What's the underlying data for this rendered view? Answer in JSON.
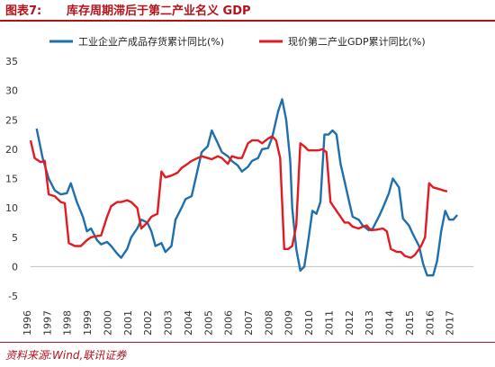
{
  "header": {
    "figure_label": "图表7:",
    "title": "库存周期滞后于第二产业名义 GDP"
  },
  "source": "资料来源:Wind,联讯证券",
  "colors": {
    "accent": "#b3121d",
    "series_blue": "#1f6fad",
    "series_red": "#e11b22"
  },
  "chart_data": {
    "type": "line",
    "title": "库存周期滞后于第二产业名义 GDP",
    "xlabel": "",
    "ylabel": "",
    "ylim": [
      -5,
      35
    ],
    "yticks": [
      -5,
      0,
      5,
      10,
      15,
      20,
      25,
      30,
      35
    ],
    "xlim": [
      1996,
      2018
    ],
    "xticks": [
      "1996",
      "1997",
      "1998",
      "1999",
      "2000",
      "2001",
      "2002",
      "2003",
      "2004",
      "2005",
      "2006",
      "2007",
      "2008",
      "2009",
      "2010",
      "2011",
      "2012",
      "2013",
      "2014",
      "2015",
      "2016",
      "2017"
    ],
    "grid": false,
    "legend_position": "top",
    "series": [
      {
        "name": "工业企业产成品存货累计同比(%)",
        "color": "#1f6fad",
        "points": [
          [
            1996.3,
            23.5
          ],
          [
            1996.6,
            18.5
          ],
          [
            1996.9,
            15.0
          ],
          [
            1997.2,
            13.0
          ],
          [
            1997.5,
            12.3
          ],
          [
            1997.8,
            12.5
          ],
          [
            1998.0,
            14.2
          ],
          [
            1998.3,
            11.0
          ],
          [
            1998.6,
            8.5
          ],
          [
            1998.8,
            6.0
          ],
          [
            1999.0,
            6.5
          ],
          [
            1999.3,
            4.5
          ],
          [
            1999.5,
            3.8
          ],
          [
            1999.8,
            4.2
          ],
          [
            2000.0,
            3.5
          ],
          [
            2000.3,
            2.2
          ],
          [
            2000.5,
            1.5
          ],
          [
            2000.8,
            3.0
          ],
          [
            2001.0,
            5.0
          ],
          [
            2001.3,
            6.5
          ],
          [
            2001.5,
            8.0
          ],
          [
            2001.8,
            7.5
          ],
          [
            2002.0,
            6.0
          ],
          [
            2002.2,
            3.5
          ],
          [
            2002.5,
            4.0
          ],
          [
            2002.7,
            2.5
          ],
          [
            2003.0,
            3.5
          ],
          [
            2003.2,
            8.0
          ],
          [
            2003.5,
            10.0
          ],
          [
            2003.7,
            11.5
          ],
          [
            2004.0,
            12.0
          ],
          [
            2004.3,
            16.5
          ],
          [
            2004.5,
            19.5
          ],
          [
            2004.8,
            20.5
          ],
          [
            2005.0,
            23.2
          ],
          [
            2005.3,
            21.0
          ],
          [
            2005.5,
            19.5
          ],
          [
            2005.8,
            18.8
          ],
          [
            2006.0,
            18.0
          ],
          [
            2006.3,
            17.2
          ],
          [
            2006.5,
            16.2
          ],
          [
            2006.8,
            17.0
          ],
          [
            2007.0,
            18.0
          ],
          [
            2007.3,
            18.5
          ],
          [
            2007.5,
            20.0
          ],
          [
            2007.8,
            20.2
          ],
          [
            2008.0,
            22.0
          ],
          [
            2008.3,
            26.5
          ],
          [
            2008.5,
            28.5
          ],
          [
            2008.7,
            25.0
          ],
          [
            2008.9,
            18.0
          ],
          [
            2009.0,
            10.0
          ],
          [
            2009.2,
            3.0
          ],
          [
            2009.4,
            -0.7
          ],
          [
            2009.6,
            0.0
          ],
          [
            2009.8,
            4.5
          ],
          [
            2010.0,
            9.5
          ],
          [
            2010.2,
            9.0
          ],
          [
            2010.4,
            11.0
          ],
          [
            2010.6,
            22.5
          ],
          [
            2010.8,
            22.5
          ],
          [
            2011.0,
            23.2
          ],
          [
            2011.2,
            22.5
          ],
          [
            2011.4,
            17.5
          ],
          [
            2011.6,
            14.5
          ],
          [
            2011.8,
            11.5
          ],
          [
            2012.0,
            8.5
          ],
          [
            2012.3,
            8.0
          ],
          [
            2012.5,
            7.0
          ],
          [
            2012.8,
            6.2
          ],
          [
            2013.0,
            6.5
          ],
          [
            2013.3,
            8.5
          ],
          [
            2013.5,
            10.0
          ],
          [
            2013.8,
            12.5
          ],
          [
            2014.0,
            15.0
          ],
          [
            2014.3,
            13.5
          ],
          [
            2014.5,
            8.2
          ],
          [
            2014.8,
            7.0
          ],
          [
            2015.0,
            5.5
          ],
          [
            2015.3,
            3.5
          ],
          [
            2015.5,
            0.5
          ],
          [
            2015.7,
            -1.5
          ],
          [
            2016.0,
            -1.5
          ],
          [
            2016.2,
            1.0
          ],
          [
            2016.4,
            6.0
          ],
          [
            2016.6,
            9.5
          ],
          [
            2016.8,
            8.0
          ],
          [
            2017.0,
            8.0
          ],
          [
            2017.2,
            8.8
          ]
        ]
      },
      {
        "name": "现价第二产业GDP累计同比(%)",
        "color": "#e11b22",
        "points": [
          [
            1996.0,
            21.5
          ],
          [
            1996.2,
            18.5
          ],
          [
            1996.5,
            17.8
          ],
          [
            1996.7,
            18.0
          ],
          [
            1996.9,
            12.3
          ],
          [
            1997.2,
            12.0
          ],
          [
            1997.5,
            11.0
          ],
          [
            1997.7,
            10.8
          ],
          [
            1997.9,
            4.0
          ],
          [
            1998.2,
            3.5
          ],
          [
            1998.5,
            3.5
          ],
          [
            1998.8,
            4.5
          ],
          [
            1999.0,
            5.0
          ],
          [
            1999.3,
            5.2
          ],
          [
            1999.5,
            5.3
          ],
          [
            1999.8,
            8.5
          ],
          [
            2000.0,
            10.3
          ],
          [
            2000.3,
            11.0
          ],
          [
            2000.5,
            11.0
          ],
          [
            2000.8,
            11.3
          ],
          [
            2001.0,
            11.0
          ],
          [
            2001.3,
            10.0
          ],
          [
            2001.5,
            6.5
          ],
          [
            2001.8,
            7.5
          ],
          [
            2002.0,
            8.5
          ],
          [
            2002.3,
            9.0
          ],
          [
            2002.5,
            16.2
          ],
          [
            2002.7,
            15.2
          ],
          [
            2003.0,
            15.5
          ],
          [
            2003.3,
            16.0
          ],
          [
            2003.5,
            16.8
          ],
          [
            2003.8,
            17.5
          ],
          [
            2004.0,
            18.0
          ],
          [
            2004.3,
            18.5
          ],
          [
            2004.5,
            18.8
          ],
          [
            2004.8,
            18.5
          ],
          [
            2005.0,
            18.3
          ],
          [
            2005.3,
            18.8
          ],
          [
            2005.5,
            18.5
          ],
          [
            2005.8,
            17.5
          ],
          [
            2006.0,
            18.8
          ],
          [
            2006.3,
            18.5
          ],
          [
            2006.5,
            18.5
          ],
          [
            2006.8,
            21.0
          ],
          [
            2007.0,
            21.5
          ],
          [
            2007.3,
            21.5
          ],
          [
            2007.5,
            21.0
          ],
          [
            2007.8,
            21.8
          ],
          [
            2008.0,
            22.2
          ],
          [
            2008.2,
            21.5
          ],
          [
            2008.4,
            18.5
          ],
          [
            2008.6,
            3.0
          ],
          [
            2008.8,
            3.0
          ],
          [
            2009.0,
            3.5
          ],
          [
            2009.2,
            7.0
          ],
          [
            2009.4,
            21.0
          ],
          [
            2009.6,
            20.5
          ],
          [
            2009.8,
            19.8
          ],
          [
            2010.0,
            19.8
          ],
          [
            2010.3,
            19.8
          ],
          [
            2010.5,
            20.0
          ],
          [
            2010.7,
            19.5
          ],
          [
            2010.9,
            11.0
          ],
          [
            2011.2,
            9.5
          ],
          [
            2011.4,
            8.5
          ],
          [
            2011.6,
            7.5
          ],
          [
            2011.8,
            7.5
          ],
          [
            2012.0,
            6.8
          ],
          [
            2012.3,
            6.5
          ],
          [
            2012.5,
            6.8
          ],
          [
            2012.7,
            7.0
          ],
          [
            2012.9,
            6.2
          ],
          [
            2013.2,
            6.3
          ],
          [
            2013.5,
            6.5
          ],
          [
            2013.7,
            6.0
          ],
          [
            2013.9,
            3.0
          ],
          [
            2014.2,
            2.5
          ],
          [
            2014.4,
            2.5
          ],
          [
            2014.6,
            1.8
          ],
          [
            2014.9,
            1.5
          ],
          [
            2015.1,
            2.0
          ],
          [
            2015.4,
            3.5
          ],
          [
            2015.6,
            5.0
          ],
          [
            2015.8,
            14.2
          ],
          [
            2016.0,
            13.5
          ],
          [
            2016.3,
            13.2
          ],
          [
            2016.5,
            13.0
          ],
          [
            2016.7,
            12.8
          ]
        ]
      }
    ]
  }
}
